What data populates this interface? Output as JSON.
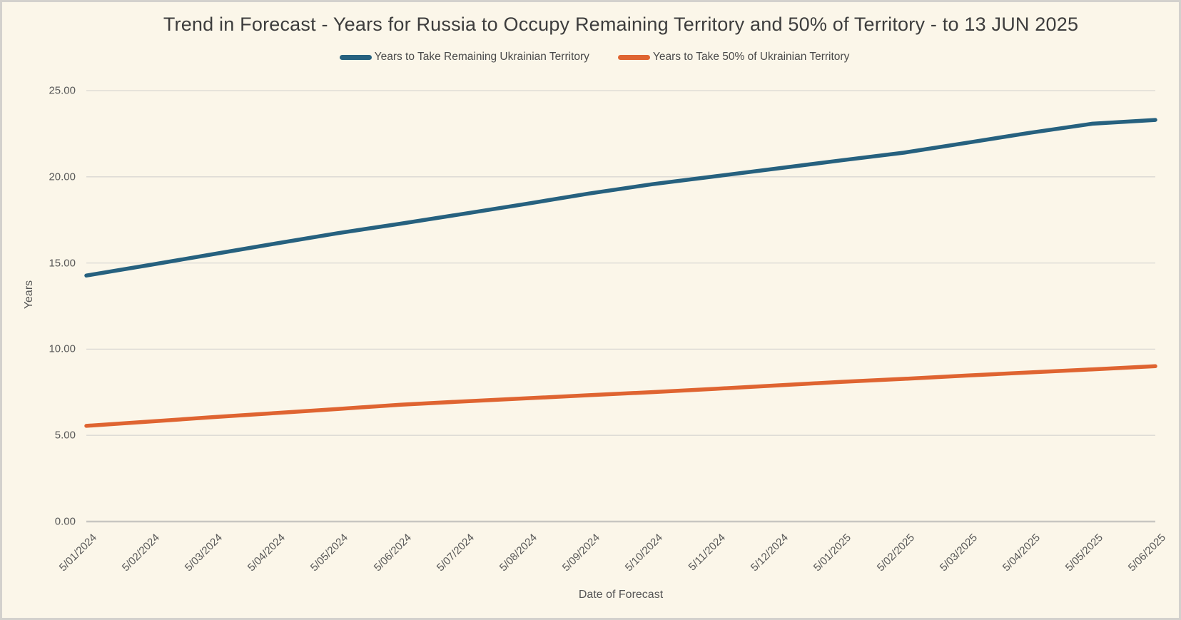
{
  "chart": {
    "title": "Trend in Forecast - Years for Russia to Occupy Remaining Territory and 50% of Territory - to 13 JUN 2025",
    "x_axis_title": "Date of Forecast",
    "y_axis_title": "Years"
  },
  "chart_data": {
    "type": "line",
    "title": "Trend in Forecast - Years for Russia to Occupy Remaining Territory and 50% of Territory - to 13 JUN 2025",
    "xlabel": "Date of Forecast",
    "ylabel": "Years",
    "ylim": [
      0,
      25
    ],
    "ytick_labels": [
      "0.00",
      "5.00",
      "10.00",
      "15.00",
      "20.00",
      "25.00"
    ],
    "ytick_values": [
      0,
      5,
      10,
      15,
      20,
      25
    ],
    "grid": true,
    "legend_position": "top",
    "categories": [
      "5/01/2024",
      "5/02/2024",
      "5/03/2024",
      "5/04/2024",
      "5/05/2024",
      "5/06/2024",
      "5/07/2024",
      "5/08/2024",
      "5/09/2024",
      "5/10/2024",
      "5/11/2024",
      "5/12/2024",
      "5/01/2025",
      "5/02/2025",
      "5/03/2025",
      "5/04/2025",
      "5/05/2025",
      "5/06/2025"
    ],
    "series": [
      {
        "name": "Years to Take Remaining Ukrainian Territory",
        "color": "#26617F",
        "values": [
          14.27,
          14.88,
          15.5,
          16.12,
          16.73,
          17.28,
          17.85,
          18.43,
          19.03,
          19.57,
          20.03,
          20.49,
          20.95,
          21.4,
          21.97,
          22.55,
          23.08,
          23.3
        ]
      },
      {
        "name": "Years to Take  50% of Ukrainian Territory",
        "color": "#DF6431",
        "values": [
          5.55,
          5.8,
          6.05,
          6.29,
          6.53,
          6.78,
          6.97,
          7.15,
          7.33,
          7.51,
          7.7,
          7.9,
          8.1,
          8.28,
          8.47,
          8.65,
          8.83,
          9.01
        ]
      }
    ]
  },
  "colors": {
    "background": "#FBF6E9",
    "frame_border": "#D3D1CD",
    "gridline": "#DAD8D3",
    "zero_axis_line": "#C8C6C2",
    "title_text": "#3D3D3D",
    "tick_text": "#585858",
    "series_blue": "#26617F",
    "series_orange": "#DF6431"
  }
}
